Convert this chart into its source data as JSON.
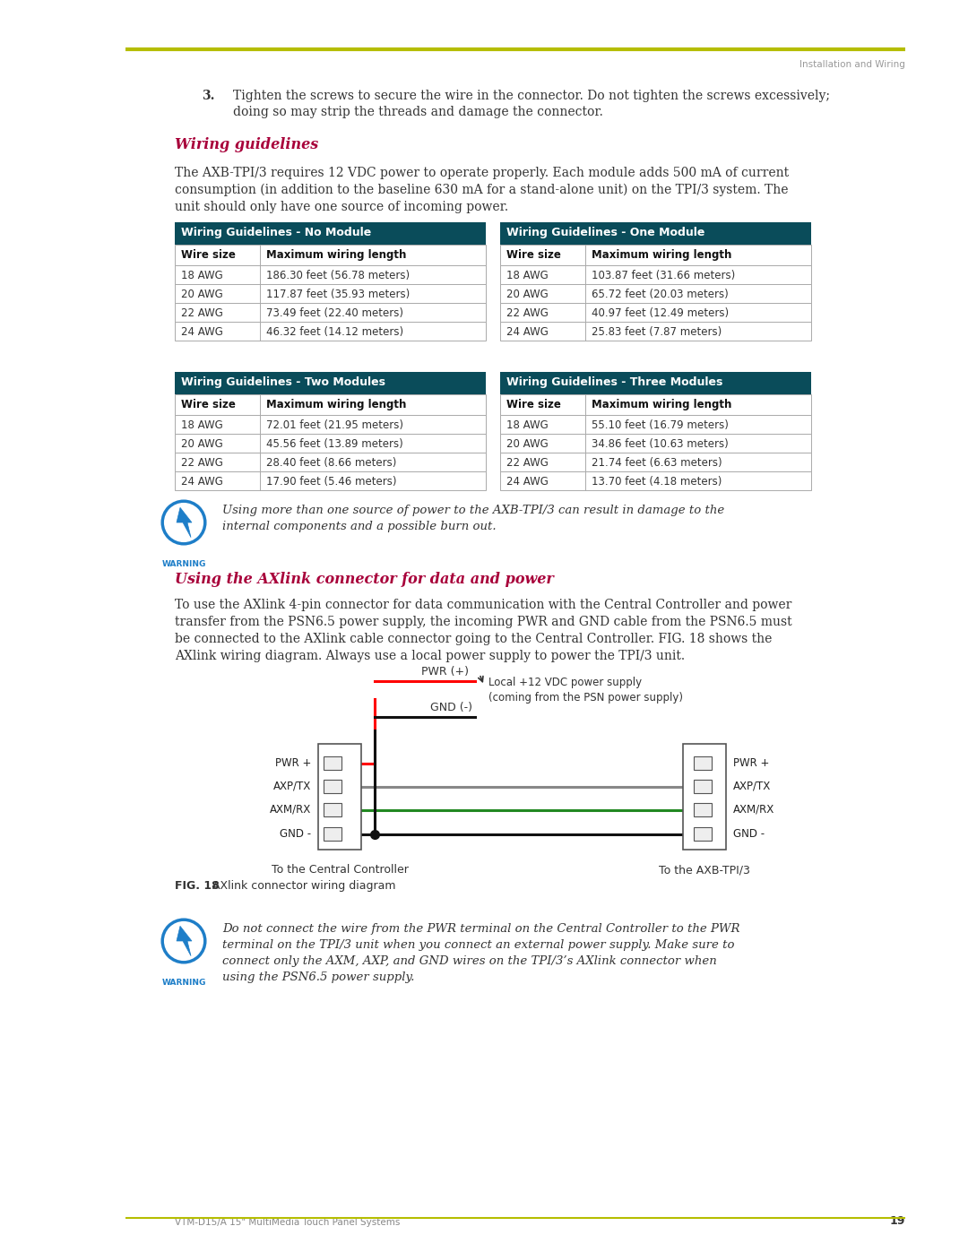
{
  "page_title_right": "Installation and Wiring",
  "header_line_color": "#b5bd00",
  "step3_line1": "Tighten the screws to secure the wire in the connector. Do not tighten the screws excessively;",
  "step3_line2": "doing so may strip the threads and damage the connector.",
  "section_heading1": "Wiring guidelines",
  "heading_color": "#a8003a",
  "para1_lines": [
    "The AXB-TPI/3 requires 12 VDC power to operate properly. Each module adds 500 mA of current",
    "consumption (in addition to the baseline 630 mA for a stand-alone unit) on the TPI/3 system. The",
    "unit should only have one source of incoming power."
  ],
  "table_header_bg": "#0a4c5a",
  "table_header_text": "#ffffff",
  "table_border_color": "#aaaaaa",
  "tables": [
    {
      "title": "Wiring Guidelines - No Module",
      "headers": [
        "Wire size",
        "Maximum wiring length"
      ],
      "rows": [
        [
          "18 AWG",
          "186.30 feet (56.78 meters)"
        ],
        [
          "20 AWG",
          "117.87 feet (35.93 meters)"
        ],
        [
          "22 AWG",
          "73.49 feet (22.40 meters)"
        ],
        [
          "24 AWG",
          "46.32 feet (14.12 meters)"
        ]
      ]
    },
    {
      "title": "Wiring Guidelines - One Module",
      "headers": [
        "Wire size",
        "Maximum wiring length"
      ],
      "rows": [
        [
          "18 AWG",
          "103.87 feet (31.66 meters)"
        ],
        [
          "20 AWG",
          "65.72 feet (20.03 meters)"
        ],
        [
          "22 AWG",
          "40.97 feet (12.49 meters)"
        ],
        [
          "24 AWG",
          "25.83 feet (7.87 meters)"
        ]
      ]
    },
    {
      "title": "Wiring Guidelines - Two Modules",
      "headers": [
        "Wire size",
        "Maximum wiring length"
      ],
      "rows": [
        [
          "18 AWG",
          "72.01 feet (21.95 meters)"
        ],
        [
          "20 AWG",
          "45.56 feet (13.89 meters)"
        ],
        [
          "22 AWG",
          "28.40 feet (8.66 meters)"
        ],
        [
          "24 AWG",
          "17.90 feet (5.46 meters)"
        ]
      ]
    },
    {
      "title": "Wiring Guidelines - Three Modules",
      "headers": [
        "Wire size",
        "Maximum wiring length"
      ],
      "rows": [
        [
          "18 AWG",
          "55.10 feet (16.79 meters)"
        ],
        [
          "20 AWG",
          "34.86 feet (10.63 meters)"
        ],
        [
          "22 AWG",
          "21.74 feet (6.63 meters)"
        ],
        [
          "24 AWG",
          "13.70 feet (4.18 meters)"
        ]
      ]
    }
  ],
  "warning1_lines": [
    "Using more than one source of power to the AXB-TPI/3 can result in damage to the",
    "internal components and a possible burn out."
  ],
  "section_heading2": "Using the AXlink connector for data and power",
  "para2_lines": [
    "To use the AXlink 4-pin connector for data communication with the Central Controller and power",
    "transfer from the PSN6.5 power supply, the incoming PWR and GND cable from the PSN6.5 must",
    "be connected to the AXlink cable connector going to the Central Controller. FIG. 18 shows the",
    "AXlink wiring diagram. Always use a local power supply to power the TPI/3 unit."
  ],
  "connector_labels_left": [
    "PWR +",
    "AXP/TX",
    "AXM/RX",
    "GND -"
  ],
  "connector_labels_right": [
    "PWR +",
    "AXP/TX",
    "AXM/RX",
    "GND -"
  ],
  "connector_left_caption": "To the Central Controller",
  "connector_right_caption": "To the AXB-TPI/3",
  "pwr_label": "PWR (+)",
  "gnd_label": "GND (-)",
  "pwr_note_line1": "Local +12 VDC power supply",
  "pwr_note_line2": "(coming from the PSN power supply)",
  "fig_caption_bold": "FIG. 18",
  "fig_caption_rest": "  AXlink connector wiring diagram",
  "warning2_lines": [
    "Do not connect the wire from the PWR terminal on the Central Controller to the PWR",
    "terminal on the TPI/3 unit when you connect an external power supply. Make sure to",
    "connect only the AXM, AXP, and GND wires on the TPI/3’s AXlink connector when",
    "using the PSN6.5 power supply."
  ],
  "footer_text": "VTM-D15/A 15\" MultiMedia Touch Panel Systems",
  "footer_page": "19",
  "warning_label": "WARNING",
  "warning_icon_color": "#1e7ec8",
  "text_color": "#333333",
  "light_text": "#888888"
}
